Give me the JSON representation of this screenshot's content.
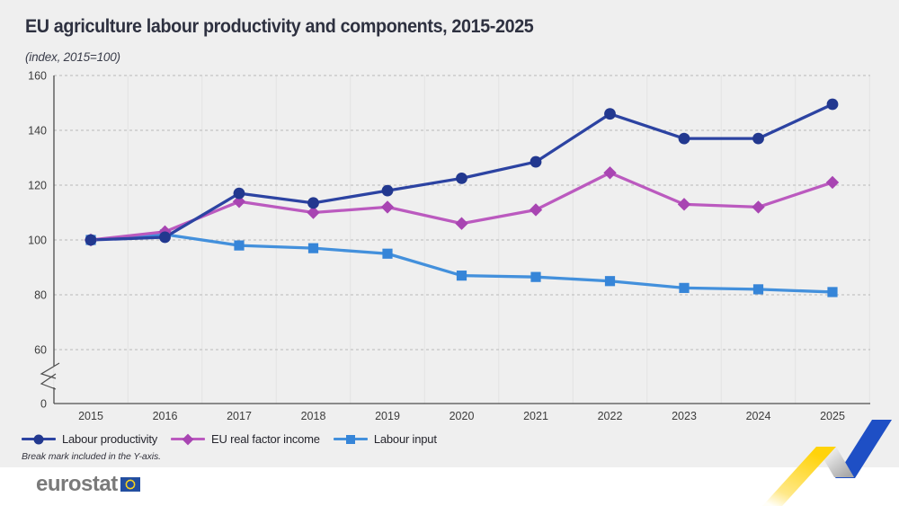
{
  "header": {
    "title": "EU agriculture labour productivity and components, 2015-2025",
    "subtitle": "(index, 2015=100)"
  },
  "footnote": "Break mark included in the Y-axis.",
  "footer": {
    "logo_text": "eurostat"
  },
  "colors": {
    "chart_background": "#efefef",
    "footer_background": "#ffffff",
    "grid_dashed": "#b9b9b9",
    "grid_vertical": "#e3e3e3",
    "axis": "#4d4d4d",
    "title_text": "#2e3140",
    "logo_gray": "#7a7a7a",
    "flag_blue": "#234ea0",
    "star_yellow": "#ffd617",
    "decoration_yellow": "#ffd30a",
    "decoration_blue": "#1e4fc5",
    "decoration_gray": "#ababab"
  },
  "chart_data": {
    "type": "line",
    "x": [
      2015,
      2016,
      2017,
      2018,
      2019,
      2020,
      2021,
      2022,
      2023,
      2024,
      2025
    ],
    "series": [
      {
        "name": "Labour productivity",
        "marker": "circle",
        "color": "#2c43a2",
        "marker_color": "#22388f",
        "values": [
          100,
          101,
          117,
          113.5,
          118,
          122.5,
          128.5,
          146,
          137,
          137,
          149.5
        ]
      },
      {
        "name": "EU real factor income",
        "marker": "diamond",
        "color": "#bb5abf",
        "marker_color": "#a845b2",
        "values": [
          100,
          103,
          114,
          110,
          112,
          106,
          111,
          124.5,
          113,
          112,
          121
        ]
      },
      {
        "name": "Labour input",
        "marker": "square",
        "color": "#4390dc",
        "marker_color": "#3685d8",
        "values": [
          100,
          102,
          98,
          97,
          95,
          87,
          86.5,
          85,
          82.5,
          82,
          81
        ]
      }
    ],
    "yticks": [
      60,
      80,
      100,
      120,
      140,
      160
    ],
    "y_base_label": "0",
    "ylim": [
      0,
      160
    ],
    "axis_break_in_y": true,
    "grid": "horizontal dashed + vertical light category boundaries",
    "legend_position": "bottom-left"
  }
}
